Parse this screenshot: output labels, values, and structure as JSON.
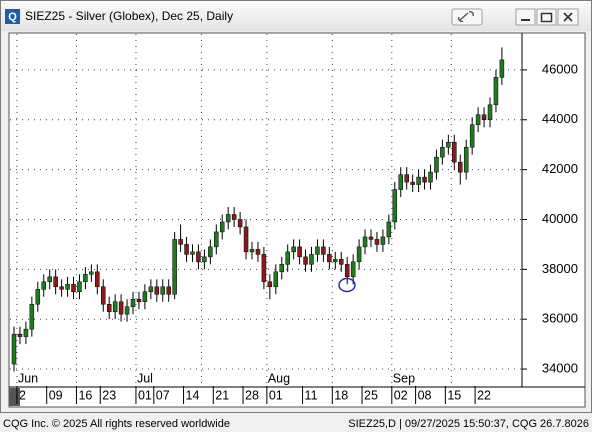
{
  "window": {
    "icon": "Q",
    "title": "SIEZ25 - Silver (Globex), Dec 25, Daily",
    "footer_left": "CQG Inc. © 2025 All rights reserved worldwide",
    "footer_right": "SIEZ25,D | 09/27/2025 15:50:37, CQG 26.7.8026"
  },
  "chart_data": {
    "type": "candlestick",
    "up_color": "#1e7b1e",
    "down_color": "#8b1a1a",
    "grid": true,
    "ylim": [
      33320,
      47440
    ],
    "yticks": [
      34000,
      36000,
      38000,
      40000,
      42000,
      44000,
      46000
    ],
    "categories": [
      null,
      "2",
      null,
      null,
      null,
      null,
      "09",
      null,
      null,
      null,
      null,
      "16",
      null,
      null,
      null,
      "23",
      null,
      null,
      null,
      null,
      null,
      "01",
      null,
      null,
      "07",
      null,
      null,
      null,
      null,
      "14",
      null,
      null,
      null,
      null,
      "21",
      null,
      null,
      null,
      null,
      "28",
      null,
      null,
      null,
      "01",
      null,
      null,
      null,
      null,
      null,
      "11",
      null,
      null,
      null,
      null,
      "18",
      null,
      null,
      null,
      null,
      "25",
      null,
      null,
      null,
      null,
      "02",
      null,
      null,
      null,
      "08",
      null,
      null,
      null,
      null,
      "15",
      null,
      null,
      null,
      null,
      "22",
      null,
      null,
      null,
      null
    ],
    "month_labels": [
      null,
      "Jun",
      null,
      null,
      null,
      null,
      null,
      null,
      null,
      null,
      null,
      null,
      null,
      null,
      null,
      null,
      null,
      null,
      null,
      null,
      null,
      "Jul",
      null,
      null,
      null,
      null,
      null,
      null,
      null,
      null,
      null,
      null,
      null,
      null,
      null,
      null,
      null,
      null,
      null,
      null,
      null,
      null,
      null,
      "Aug",
      null,
      null,
      null,
      null,
      null,
      null,
      null,
      null,
      null,
      null,
      null,
      null,
      null,
      null,
      null,
      null,
      null,
      null,
      null,
      null,
      "Sep",
      null,
      null,
      null,
      null,
      null,
      null,
      null,
      null,
      null,
      null,
      null,
      null,
      null,
      null,
      null,
      null,
      null,
      null
    ],
    "open": [
      34200,
      35400,
      35300,
      35600,
      36600,
      37200,
      37500,
      37700,
      37300,
      37200,
      37400,
      37100,
      37500,
      37800,
      37900,
      37300,
      36600,
      36300,
      36700,
      36200,
      36500,
      36800,
      36700,
      37100,
      37300,
      37000,
      37300,
      37000,
      39200,
      39000,
      38600,
      38700,
      38300,
      38500,
      38900,
      39500,
      39900,
      40200,
      40000,
      39700,
      38700,
      38800,
      38600,
      37500,
      37300,
      37900,
      38200,
      38700,
      38900,
      38500,
      38200,
      38600,
      38900,
      38600,
      38300,
      38400,
      38200,
      37700,
      38300,
      38900,
      39300,
      39200,
      39000,
      39300,
      39900,
      41200,
      41800,
      41500,
      41400,
      41700,
      41500,
      41900,
      42500,
      42900,
      43100,
      42300,
      41900,
      42900,
      43800,
      44200,
      44000,
      44600,
      45700
    ],
    "high": [
      35700,
      35700,
      35900,
      36900,
      37500,
      37800,
      38000,
      38000,
      37600,
      37700,
      37700,
      37800,
      38100,
      38200,
      38200,
      37600,
      36900,
      37000,
      37000,
      36800,
      37100,
      37100,
      37400,
      37600,
      37600,
      37600,
      37600,
      39500,
      39800,
      39300,
      39000,
      39000,
      38800,
      39200,
      39800,
      40200,
      40500,
      40500,
      40300,
      40000,
      39100,
      39100,
      38900,
      37800,
      38200,
      38500,
      39000,
      39200,
      39200,
      38800,
      38900,
      39200,
      39200,
      38900,
      38700,
      38700,
      38500,
      38600,
      39200,
      39600,
      39600,
      39500,
      39600,
      40200,
      41500,
      42100,
      42100,
      41800,
      42000,
      42000,
      42200,
      42800,
      43200,
      43400,
      43400,
      42600,
      43200,
      44100,
      44500,
      44500,
      44900,
      46000,
      46900
    ],
    "low": [
      33900,
      35000,
      35000,
      35300,
      36300,
      36900,
      37200,
      37000,
      36900,
      36900,
      36800,
      36800,
      37200,
      37500,
      37000,
      36300,
      36000,
      36000,
      35900,
      35900,
      36200,
      36400,
      36400,
      36800,
      36700,
      36700,
      36700,
      36800,
      38700,
      38300,
      38300,
      38000,
      38000,
      38200,
      38600,
      39200,
      39600,
      39700,
      39400,
      38400,
      38400,
      38300,
      37200,
      36800,
      37000,
      37600,
      37900,
      38400,
      38200,
      37900,
      37900,
      38300,
      38300,
      38000,
      38000,
      37900,
      37400,
      37400,
      38000,
      38600,
      38900,
      38700,
      38700,
      39000,
      39600,
      40900,
      41200,
      41100,
      41100,
      41200,
      41200,
      41600,
      42200,
      42600,
      42000,
      41400,
      41600,
      42600,
      43500,
      43700,
      43700,
      44300,
      45400
    ],
    "close": [
      35400,
      35300,
      35600,
      36600,
      37200,
      37500,
      37700,
      37300,
      37200,
      37400,
      37100,
      37500,
      37800,
      37900,
      37300,
      36600,
      36300,
      36700,
      36200,
      36500,
      36800,
      36700,
      37100,
      37300,
      37000,
      37300,
      37000,
      39200,
      39000,
      38600,
      38700,
      38300,
      38500,
      38900,
      39500,
      39900,
      40200,
      40000,
      39700,
      38700,
      38800,
      38600,
      37500,
      37300,
      37900,
      38200,
      38700,
      38900,
      38500,
      38200,
      38600,
      38900,
      38600,
      38300,
      38400,
      38200,
      37700,
      38300,
      38900,
      39300,
      39200,
      39000,
      39300,
      39900,
      41200,
      41800,
      41500,
      41400,
      41700,
      41500,
      41900,
      42500,
      42900,
      43100,
      42300,
      41900,
      42900,
      43800,
      44200,
      44000,
      44600,
      45700,
      46400
    ]
  }
}
